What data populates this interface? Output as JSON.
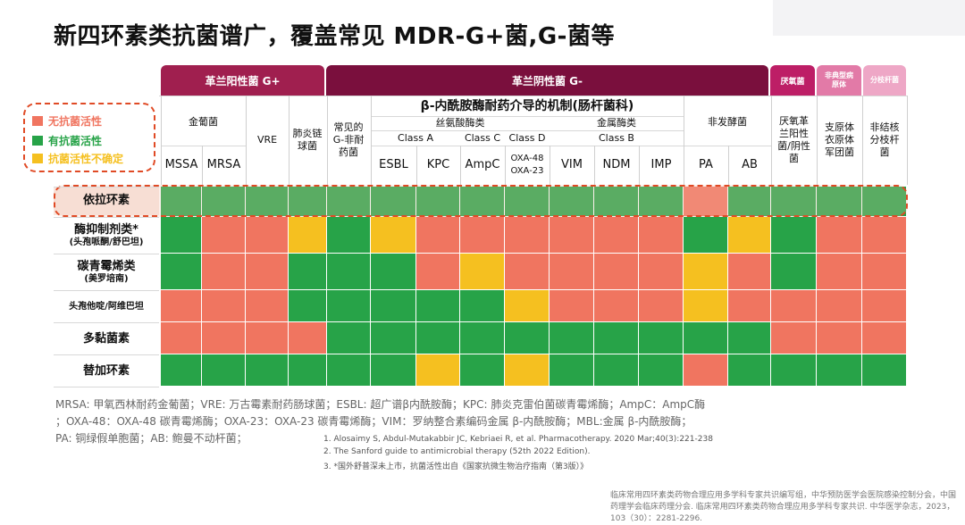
{
  "title": "新四环素类抗菌谱广，覆盖常见 MDR-G+菌,G-菌等",
  "groups": {
    "gram_pos": "革兰阳性菌 G+",
    "gram_neg": "革兰阴性菌 G-",
    "anaerobe": "厌氧菌",
    "atypical": "非典型病原体",
    "mycobacterium": "分枝杆菌"
  },
  "subheaders": {
    "staph": "金葡菌",
    "vre": "VRE",
    "pneumo": "肺炎链球菌",
    "common_g": "常见的G-非耐药菌",
    "blactam": "β-内酰胺酶耐药介导的机制(肠杆菌科)",
    "serine": "丝氨酸酶类",
    "metallo": "金属酶类",
    "class_a": "Class A",
    "class_c": "Class C",
    "class_d": "Class D",
    "class_b": "Class B",
    "nonferm": "非发酵菌",
    "anaerobe_col": "厌氧革兰阳性菌/阴性菌",
    "atypical_col": "支原体衣原体军团菌",
    "mycobact_col": "非结核分枝杆菌"
  },
  "columns": [
    "MSSA",
    "MRSA",
    "",
    "",
    "",
    "ESBL",
    "KPC",
    "AmpC",
    "OXA-48 OXA-23",
    "VIM",
    "NDM",
    "IMP",
    "PA",
    "AB",
    "",
    "",
    ""
  ],
  "legend": [
    {
      "label": "无抗菌活性",
      "color": "#f07560"
    },
    {
      "label": "有抗菌活性",
      "color": "#27a348"
    },
    {
      "label": "抗菌活性不确定",
      "color": "#f5c020"
    }
  ],
  "colors": {
    "R": "#f07560",
    "G": "#27a348",
    "Y": "#f5c020"
  },
  "rows": [
    {
      "label": "依拉环素",
      "sub": "",
      "values": [
        "G",
        "G",
        "G",
        "G",
        "G",
        "G",
        "G",
        "G",
        "G",
        "G",
        "G",
        "G",
        "R",
        "G",
        "G",
        "G",
        "G"
      ]
    },
    {
      "label": "酶抑制剂类*",
      "sub": "(头孢哌酮/舒巴坦)",
      "values": [
        "G",
        "R",
        "R",
        "Y",
        "G",
        "Y",
        "R",
        "R",
        "R",
        "R",
        "R",
        "R",
        "G",
        "Y",
        "G",
        "R",
        "R"
      ]
    },
    {
      "label": "碳青霉烯类",
      "sub": "(美罗培南)",
      "values": [
        "G",
        "R",
        "R",
        "G",
        "G",
        "G",
        "R",
        "Y",
        "R",
        "R",
        "R",
        "R",
        "Y",
        "R",
        "G",
        "R",
        "R"
      ]
    },
    {
      "label": "头孢他啶/阿维巴坦",
      "sub": "",
      "values": [
        "R",
        "R",
        "R",
        "G",
        "G",
        "G",
        "G",
        "G",
        "Y",
        "R",
        "R",
        "R",
        "Y",
        "R",
        "R",
        "R",
        "R"
      ]
    },
    {
      "label": "多黏菌素",
      "sub": "",
      "values": [
        "R",
        "R",
        "R",
        "R",
        "G",
        "G",
        "G",
        "G",
        "G",
        "G",
        "G",
        "G",
        "G",
        "G",
        "R",
        "R",
        "R"
      ]
    },
    {
      "label": "替加环素",
      "sub": "",
      "values": [
        "G",
        "G",
        "G",
        "G",
        "G",
        "G",
        "Y",
        "G",
        "Y",
        "G",
        "G",
        "G",
        "R",
        "G",
        "G",
        "G",
        "G"
      ]
    }
  ],
  "abbreviations": [
    "MRSA: 甲氧西林耐药金葡菌；VRE: 万古霉素耐药肠球菌；ESBL: 超广谱β内酰胺酶；KPC: 肺炎克雷伯菌碳青霉烯酶；AmpC：AmpC酶",
    "；OXA-48：OXA-48 碳青霉烯酶；OXA-23：OXA-23 碳青霉烯酶；VIM：罗纳整合素编码金属 β-内酰胺酶；MBL:金属 β-内酰胺酶；",
    "PA: 铜绿假单胞菌；AB: 鲍曼不动杆菌；"
  ],
  "references": [
    "1.   Alosaimy S, Abdul-Mutakabbir JC, Kebriaei R, et al. Pharmacotherapy. 2020 Mar;40(3):221-238",
    "2.   The Sanford guide to antimicrobial therapy (52th 2022 Edition).",
    "3.   *国外舒普深未上市，抗菌活性出自《国家抗微生物治疗指南（第3版）》"
  ],
  "source": "临床常用四环素类药物合理应用多学科专家共识编写组，中华预防医学会医院感染控制分会，中国药理学会临床药理分会. 临床常用四环素类药物合理应用多学科专家共识. 中华医学杂志，2023，103（30）：2281-2296."
}
